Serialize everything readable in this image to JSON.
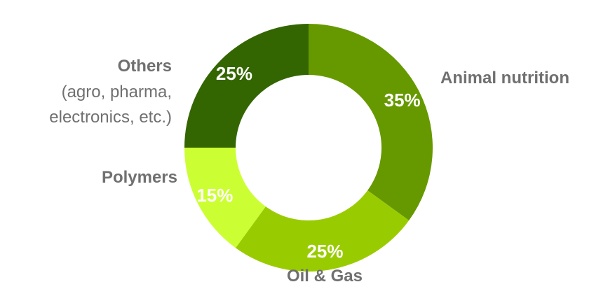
{
  "chart_data": {
    "type": "pie",
    "variant": "donut",
    "start": "top",
    "direction": "clockwise",
    "categories": [
      "Animal nutrition",
      "Oil & Gas",
      "Polymers",
      "Others"
    ],
    "values": [
      35,
      25,
      15,
      25
    ],
    "value_labels": [
      "35%",
      "25%",
      "15%",
      "25%"
    ],
    "colors": [
      "#669900",
      "#99CC00",
      "#CCFF33",
      "#336600"
    ],
    "label_subtext": {
      "Others": "(agro, pharma,\nelectronics, etc.)"
    }
  }
}
